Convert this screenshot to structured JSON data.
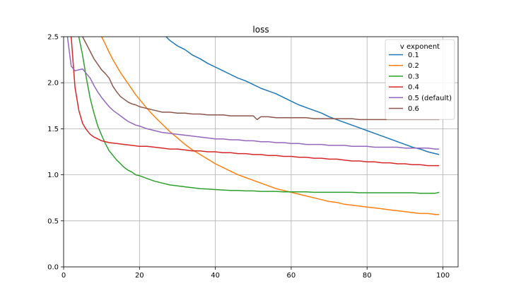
{
  "chart_data": {
    "type": "line",
    "title": "loss",
    "xlabel": "",
    "ylabel": "",
    "xlim": [
      0,
      104
    ],
    "ylim": [
      0.0,
      2.5
    ],
    "x_ticks": [
      "0",
      "20",
      "40",
      "60",
      "80",
      "100"
    ],
    "y_ticks": [
      "0.0",
      "0.5",
      "1.0",
      "1.5",
      "2.0",
      "2.5"
    ],
    "grid": true,
    "legend": {
      "title": "v exponent",
      "placement": "top-right"
    },
    "series": [
      {
        "name": "0.1",
        "color": "#1f77b4",
        "x": [
          27,
          28,
          30,
          32,
          34,
          36,
          38,
          40,
          42,
          44,
          46,
          48,
          50,
          52,
          54,
          56,
          58,
          60,
          62,
          64,
          66,
          68,
          70,
          72,
          74,
          76,
          78,
          80,
          82,
          84,
          86,
          88,
          90,
          92,
          94,
          96,
          98,
          99
        ],
        "y": [
          2.5,
          2.46,
          2.4,
          2.36,
          2.3,
          2.26,
          2.21,
          2.17,
          2.13,
          2.09,
          2.05,
          2.02,
          1.98,
          1.94,
          1.91,
          1.88,
          1.84,
          1.8,
          1.76,
          1.73,
          1.7,
          1.67,
          1.63,
          1.6,
          1.57,
          1.54,
          1.51,
          1.48,
          1.45,
          1.42,
          1.39,
          1.36,
          1.33,
          1.3,
          1.28,
          1.25,
          1.23,
          1.22
        ]
      },
      {
        "name": "0.2",
        "color": "#ff7f0e",
        "x": [
          10,
          11,
          12,
          13,
          14,
          15,
          16,
          17,
          18,
          19,
          20,
          22,
          24,
          26,
          28,
          30,
          32,
          34,
          36,
          38,
          40,
          42,
          44,
          46,
          48,
          50,
          52,
          54,
          56,
          58,
          60,
          62,
          64,
          66,
          68,
          70,
          72,
          74,
          76,
          78,
          80,
          82,
          84,
          86,
          88,
          90,
          92,
          94,
          96,
          98,
          99
        ],
        "y": [
          2.5,
          2.42,
          2.33,
          2.25,
          2.18,
          2.11,
          2.05,
          1.99,
          1.93,
          1.87,
          1.82,
          1.72,
          1.63,
          1.55,
          1.47,
          1.4,
          1.33,
          1.27,
          1.22,
          1.17,
          1.12,
          1.08,
          1.04,
          1.0,
          0.97,
          0.94,
          0.91,
          0.88,
          0.85,
          0.83,
          0.81,
          0.79,
          0.77,
          0.75,
          0.73,
          0.71,
          0.7,
          0.68,
          0.67,
          0.66,
          0.65,
          0.64,
          0.63,
          0.62,
          0.61,
          0.6,
          0.59,
          0.58,
          0.58,
          0.57,
          0.57
        ]
      },
      {
        "name": "0.3",
        "color": "#2ca02c",
        "x": [
          4,
          5,
          6,
          7,
          8,
          9,
          10,
          11,
          12,
          13,
          14,
          15,
          16,
          17,
          18,
          19,
          20,
          22,
          24,
          26,
          28,
          30,
          32,
          34,
          36,
          38,
          40,
          42,
          44,
          46,
          48,
          50,
          52,
          54,
          56,
          58,
          60,
          62,
          64,
          66,
          68,
          70,
          72,
          74,
          76,
          78,
          80,
          82,
          84,
          86,
          88,
          90,
          92,
          94,
          96,
          98,
          99
        ],
        "y": [
          2.5,
          2.3,
          2.05,
          1.83,
          1.67,
          1.53,
          1.43,
          1.34,
          1.26,
          1.21,
          1.16,
          1.12,
          1.08,
          1.05,
          1.03,
          1.0,
          0.99,
          0.96,
          0.93,
          0.91,
          0.89,
          0.88,
          0.87,
          0.86,
          0.85,
          0.845,
          0.84,
          0.835,
          0.83,
          0.83,
          0.825,
          0.825,
          0.82,
          0.82,
          0.82,
          0.815,
          0.815,
          0.815,
          0.815,
          0.81,
          0.81,
          0.81,
          0.81,
          0.81,
          0.81,
          0.805,
          0.805,
          0.805,
          0.805,
          0.805,
          0.805,
          0.805,
          0.805,
          0.8,
          0.8,
          0.8,
          0.81
        ]
      },
      {
        "name": "0.4",
        "color": "#d62728",
        "x": [
          2,
          3,
          4,
          5,
          6,
          7,
          8,
          9,
          10,
          12,
          14,
          16,
          18,
          20,
          22,
          24,
          26,
          28,
          30,
          32,
          34,
          36,
          38,
          40,
          42,
          44,
          46,
          48,
          50,
          52,
          54,
          56,
          58,
          60,
          62,
          64,
          66,
          68,
          70,
          72,
          74,
          76,
          78,
          80,
          82,
          84,
          86,
          88,
          90,
          92,
          94,
          96,
          98,
          99
        ],
        "y": [
          2.5,
          1.95,
          1.7,
          1.56,
          1.49,
          1.44,
          1.41,
          1.39,
          1.37,
          1.35,
          1.34,
          1.33,
          1.32,
          1.31,
          1.31,
          1.3,
          1.29,
          1.28,
          1.28,
          1.27,
          1.26,
          1.26,
          1.25,
          1.25,
          1.24,
          1.24,
          1.23,
          1.23,
          1.22,
          1.22,
          1.21,
          1.21,
          1.2,
          1.2,
          1.19,
          1.19,
          1.18,
          1.18,
          1.17,
          1.17,
          1.16,
          1.15,
          1.15,
          1.14,
          1.14,
          1.13,
          1.13,
          1.12,
          1.12,
          1.11,
          1.11,
          1.1,
          1.1,
          1.1
        ]
      },
      {
        "name": "0.5 (default)",
        "color": "#9467bd",
        "x": [
          1,
          2,
          3,
          4,
          5,
          6,
          7,
          8,
          9,
          10,
          11,
          12,
          13,
          14,
          15,
          16,
          17,
          18,
          19,
          20,
          22,
          24,
          26,
          28,
          30,
          32,
          34,
          36,
          38,
          40,
          42,
          44,
          46,
          48,
          50,
          52,
          54,
          56,
          58,
          60,
          62,
          64,
          66,
          68,
          70,
          72,
          74,
          76,
          78,
          80,
          82,
          84,
          86,
          88,
          90,
          92,
          94,
          96,
          98,
          99
        ],
        "y": [
          2.5,
          2.18,
          2.13,
          2.14,
          2.15,
          2.1,
          2.05,
          1.97,
          1.9,
          1.84,
          1.79,
          1.74,
          1.7,
          1.67,
          1.64,
          1.61,
          1.58,
          1.56,
          1.54,
          1.53,
          1.5,
          1.48,
          1.46,
          1.45,
          1.44,
          1.43,
          1.42,
          1.41,
          1.4,
          1.39,
          1.39,
          1.38,
          1.38,
          1.37,
          1.37,
          1.36,
          1.36,
          1.35,
          1.35,
          1.34,
          1.34,
          1.33,
          1.33,
          1.33,
          1.32,
          1.32,
          1.32,
          1.31,
          1.31,
          1.31,
          1.3,
          1.3,
          1.3,
          1.3,
          1.29,
          1.29,
          1.29,
          1.29,
          1.28,
          1.28
        ]
      },
      {
        "name": "0.6",
        "color": "#8c564b",
        "x": [
          5,
          6,
          7,
          8,
          9,
          10,
          11,
          12,
          13,
          14,
          15,
          16,
          17,
          18,
          19,
          20,
          22,
          24,
          26,
          28,
          30,
          32,
          34,
          36,
          38,
          40,
          42,
          44,
          46,
          48,
          50,
          51,
          52,
          54,
          56,
          58,
          60,
          62,
          64,
          66,
          68,
          70,
          72,
          74,
          76,
          78,
          80,
          82,
          84,
          86,
          88,
          90,
          92,
          94,
          96,
          98,
          99
        ],
        "y": [
          2.5,
          2.42,
          2.34,
          2.26,
          2.2,
          2.14,
          2.1,
          2.05,
          1.96,
          1.9,
          1.85,
          1.82,
          1.79,
          1.77,
          1.76,
          1.74,
          1.72,
          1.7,
          1.68,
          1.68,
          1.67,
          1.67,
          1.66,
          1.66,
          1.65,
          1.65,
          1.65,
          1.64,
          1.64,
          1.64,
          1.64,
          1.6,
          1.63,
          1.63,
          1.62,
          1.62,
          1.62,
          1.62,
          1.62,
          1.61,
          1.61,
          1.61,
          1.61,
          1.61,
          1.61,
          1.6,
          1.6,
          1.6,
          1.6,
          1.6,
          1.6,
          1.6,
          1.6,
          1.6,
          1.6,
          1.6,
          1.6
        ]
      }
    ]
  }
}
